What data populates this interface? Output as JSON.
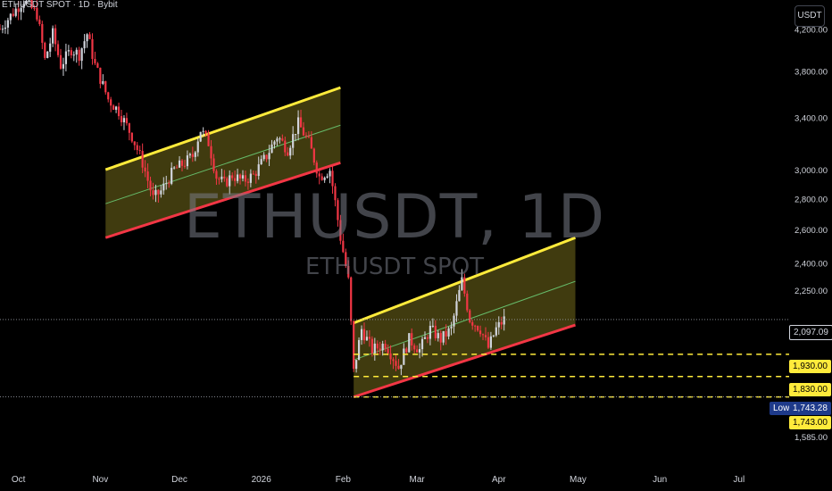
{
  "header": {
    "title": "ETHUSDT SPOT · 1D · Bybit"
  },
  "currency_button": "USDT",
  "watermark": {
    "main": "ETHUSDT, 1D",
    "sub": "ETHUSDT SPOT"
  },
  "colors": {
    "background": "#000000",
    "up": "#d1d4dc",
    "down": "#f23645",
    "channel_top": "#ffeb3b",
    "channel_bottom": "#f23645",
    "channel_fill": "rgba(255,235,59,0.25)",
    "channel_mid": "#66bb6a",
    "level_line": "#ffeb3b"
  },
  "price_labels": {
    "current": "2,097.09",
    "level_1930": "1,930.00",
    "level_1830": "1,830.00",
    "low_tag": "Low",
    "low_value": "1,743.28",
    "level_1743": "1,743.00"
  },
  "chart_data": {
    "type": "candlestick",
    "title": "ETHUSDT SPOT · 1D · Bybit",
    "y_scale": "log",
    "ylim": [
      1500,
      4500
    ],
    "y_ticks": [
      {
        "value": 4200,
        "label": "4,200.00"
      },
      {
        "value": 3800,
        "label": "3,800.00"
      },
      {
        "value": 3400,
        "label": "3,400.00"
      },
      {
        "value": 3000,
        "label": "3,000.00"
      },
      {
        "value": 2800,
        "label": "2,800.00"
      },
      {
        "value": 2600,
        "label": "2,600.00"
      },
      {
        "value": 2400,
        "label": "2,400.00"
      },
      {
        "value": 2250,
        "label": "2,250.00"
      },
      {
        "value": 1585,
        "label": "1,585.00"
      }
    ],
    "xlim": [
      "2025-09-24",
      "2026-07-20"
    ],
    "x_ticks": [
      {
        "date": "2025-10-01",
        "label": "Oct"
      },
      {
        "date": "2025-11-01",
        "label": "Nov"
      },
      {
        "date": "2025-12-01",
        "label": "Dec"
      },
      {
        "date": "2026-01-01",
        "label": "2026"
      },
      {
        "date": "2026-02-01",
        "label": "Feb"
      },
      {
        "date": "2026-03-01",
        "label": "Mar"
      },
      {
        "date": "2026-04-01",
        "label": "Apr"
      },
      {
        "date": "2026-05-01",
        "label": "May"
      },
      {
        "date": "2026-06-01",
        "label": "Jun"
      },
      {
        "date": "2026-07-01",
        "label": "Jul"
      }
    ],
    "price_path": [
      [
        "2025-09-24",
        4200
      ],
      [
        "2025-10-03",
        4500
      ],
      [
        "2025-10-08",
        4350
      ],
      [
        "2025-10-11",
        3900
      ],
      [
        "2025-10-14",
        4150
      ],
      [
        "2025-10-17",
        3850
      ],
      [
        "2025-10-21",
        4000
      ],
      [
        "2025-10-24",
        3950
      ],
      [
        "2025-10-27",
        4150
      ],
      [
        "2025-10-30",
        3850
      ],
      [
        "2025-11-04",
        3550
      ],
      [
        "2025-11-08",
        3450
      ],
      [
        "2025-11-13",
        3250
      ],
      [
        "2025-11-17",
        3050
      ],
      [
        "2025-11-21",
        2800
      ],
      [
        "2025-11-24",
        2850
      ],
      [
        "2025-11-29",
        3000
      ],
      [
        "2025-12-03",
        3050
      ],
      [
        "2025-12-06",
        3100
      ],
      [
        "2025-12-09",
        3300
      ],
      [
        "2025-12-12",
        3200
      ],
      [
        "2025-12-15",
        2950
      ],
      [
        "2025-12-18",
        2900
      ],
      [
        "2025-12-21",
        2960
      ],
      [
        "2025-12-25",
        2920
      ],
      [
        "2025-12-29",
        2960
      ],
      [
        "2026-01-03",
        3100
      ],
      [
        "2026-01-07",
        3250
      ],
      [
        "2026-01-11",
        3150
      ],
      [
        "2026-01-15",
        3350
      ],
      [
        "2026-01-19",
        3200
      ],
      [
        "2026-01-23",
        2950
      ],
      [
        "2026-01-27",
        3000
      ],
      [
        "2026-01-31",
        2550
      ],
      [
        "2026-02-03",
        2300
      ],
      [
        "2026-02-05",
        1850
      ],
      [
        "2026-02-08",
        2050
      ],
      [
        "2026-02-12",
        1950
      ],
      [
        "2026-02-17",
        1980
      ],
      [
        "2026-02-22",
        1870
      ],
      [
        "2026-02-26",
        2000
      ],
      [
        "2026-03-02",
        1950
      ],
      [
        "2026-03-06",
        2050
      ],
      [
        "2026-03-10",
        2000
      ],
      [
        "2026-03-14",
        2050
      ],
      [
        "2026-03-18",
        2300
      ],
      [
        "2026-03-21",
        2100
      ],
      [
        "2026-03-25",
        2050
      ],
      [
        "2026-03-28",
        1960
      ],
      [
        "2026-03-31",
        2050
      ],
      [
        "2026-04-03",
        2097
      ]
    ],
    "channels": [
      {
        "start": "2025-11-03",
        "end": "2026-01-31",
        "upper": [
          3000,
          3650
        ],
        "lower": [
          2550,
          3050
        ]
      },
      {
        "start": "2026-02-05",
        "end": "2026-04-30",
        "upper": [
          2080,
          2550
        ],
        "lower": [
          1743,
          2070
        ]
      }
    ],
    "horizontal_levels": [
      {
        "value": 1930,
        "style": "dashed",
        "label": "1,930.00"
      },
      {
        "value": 1830,
        "style": "dashed",
        "label": "1,830.00"
      },
      {
        "value": 1743,
        "style": "dashed",
        "label": "1,743.00"
      }
    ],
    "current_price": {
      "value": 2097.09,
      "label": "2,097.09"
    },
    "low_marker": {
      "value": 1743.28,
      "label": "1,743.28"
    }
  }
}
